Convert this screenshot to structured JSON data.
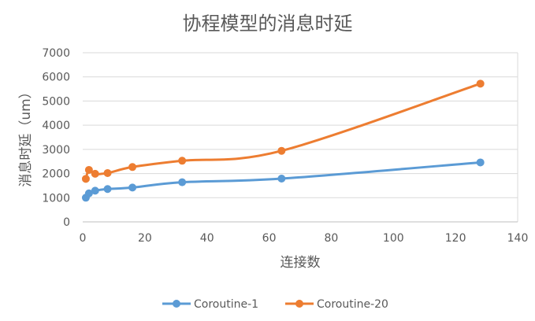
{
  "chart_data": {
    "type": "line",
    "title": "协程模型的消息时延",
    "xlabel": "连接数",
    "ylabel": "消息时延（um）",
    "xlim": [
      0,
      140
    ],
    "ylim": [
      0,
      7000
    ],
    "x_ticks": [
      0,
      20,
      40,
      60,
      80,
      100,
      120,
      140
    ],
    "y_ticks": [
      0,
      1000,
      2000,
      3000,
      4000,
      5000,
      6000,
      7000
    ],
    "grid": "horizontal",
    "legend_position": "bottom",
    "smooth": true,
    "series": [
      {
        "name": "Coroutine-1",
        "color": "#5b9bd5",
        "x": [
          1,
          2,
          4,
          8,
          16,
          32,
          64,
          128
        ],
        "y": [
          1000,
          1180,
          1290,
          1360,
          1420,
          1640,
          1790,
          2460
        ]
      },
      {
        "name": "Coroutine-20",
        "color": "#ed7d31",
        "x": [
          1,
          2,
          4,
          8,
          16,
          32,
          64,
          128
        ],
        "y": [
          1780,
          2150,
          1990,
          2020,
          2270,
          2530,
          2940,
          5720
        ]
      }
    ]
  }
}
